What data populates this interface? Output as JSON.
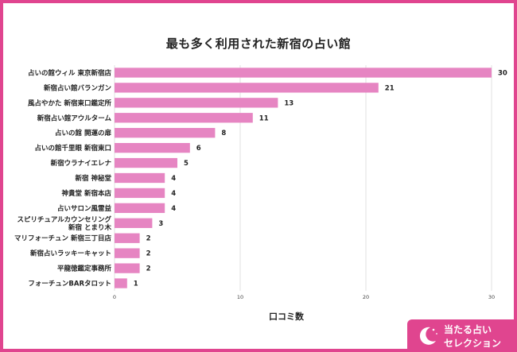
{
  "colors": {
    "frame": "#e0458f",
    "bar": "#e685c2",
    "badge_bg": "#e0458f",
    "grid": "#d9d9d9"
  },
  "chart_data": {
    "type": "bar",
    "orientation": "horizontal",
    "title": "最も多く利用された新宿の占い館",
    "xlabel": "口コミ数",
    "ylabel": "",
    "xlim": [
      0,
      30
    ],
    "xticks": [
      0,
      10,
      20,
      30
    ],
    "grid": true,
    "legend": "none",
    "categories": [
      [
        "占いの館ウィル 東京新宿店"
      ],
      [
        "新宿占い館バランガン"
      ],
      [
        "風占やかた 新宿東口鑑定所"
      ],
      [
        "新宿占い館アウルターム"
      ],
      [
        "占いの館 開運の扉"
      ],
      [
        "占いの館千里眼 新宿東口"
      ],
      [
        "新宿ウラナイエレナ"
      ],
      [
        "新宿 神秘堂"
      ],
      [
        "神貴堂 新宿本店"
      ],
      [
        "占いサロン風雷益"
      ],
      [
        "スピリチュアルカウンセリング",
        "新宿 とまり木"
      ],
      [
        "マリフォーチュン 新宿三丁目店"
      ],
      [
        "新宿占いラッキーキャット"
      ],
      [
        "平龍徳鑑定事務所"
      ],
      [
        "フォーチュンBARタロット"
      ]
    ],
    "values": [
      30,
      21,
      13,
      11,
      8,
      6,
      5,
      4,
      4,
      4,
      3,
      2,
      2,
      2,
      1
    ]
  },
  "badge": {
    "icon": "moon-stars-icon",
    "line1": "当たる占い",
    "line2": "セレクション"
  }
}
